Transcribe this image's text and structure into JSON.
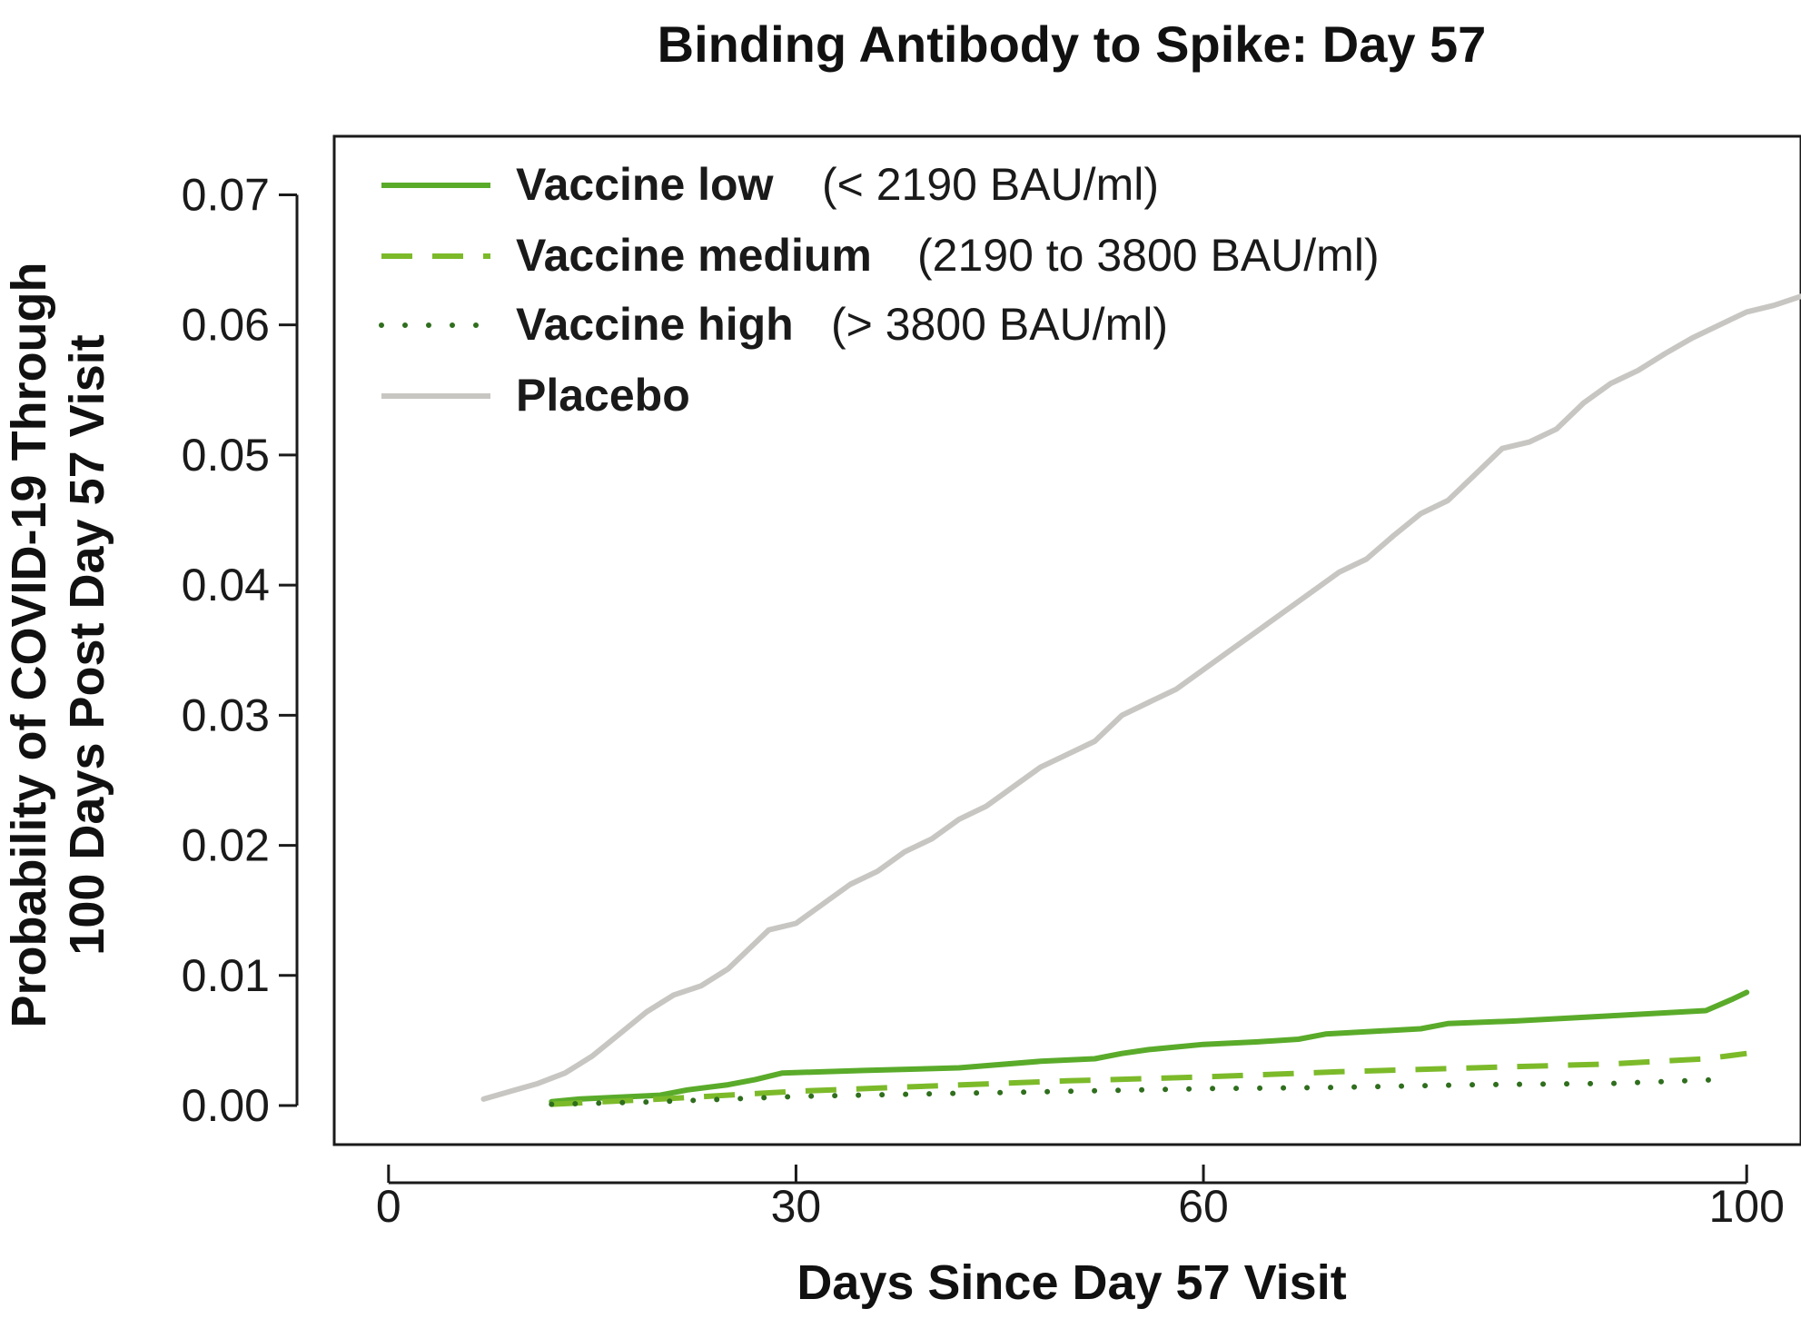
{
  "chart_data": {
    "type": "line",
    "title": "Binding Antibody to Spike: Day 57",
    "xlabel": "Days Since Day 57 Visit",
    "ylabel_line1": "Probability of COVID-19 Through",
    "ylabel_line2": "100 Days Post Day 57 Visit",
    "xlim": [
      -4,
      104
    ],
    "ylim": [
      -0.003,
      0.0745
    ],
    "x_ticks": [
      0,
      30,
      60,
      100
    ],
    "x_tick_labels": [
      "0",
      "30",
      "60",
      "100"
    ],
    "y_ticks": [
      0.0,
      0.01,
      0.02,
      0.03,
      0.04,
      0.05,
      0.06,
      0.07
    ],
    "y_tick_labels": [
      "0.00",
      "0.01",
      "0.02",
      "0.03",
      "0.04",
      "0.05",
      "0.06",
      "0.07"
    ],
    "grid": false,
    "legend_position": "top-left",
    "series": [
      {
        "name": "Vaccine low",
        "range_label": "(< 2190 BAU/ml)",
        "color": "#5aab2a",
        "style": "solid",
        "x": [
          12,
          14,
          20,
          22,
          25,
          27,
          29,
          35,
          42,
          48,
          52,
          54,
          56,
          60,
          64,
          67,
          69,
          76,
          78,
          83,
          90,
          97,
          99,
          100
        ],
        "y": [
          0.0003,
          0.0005,
          0.0008,
          0.0012,
          0.0016,
          0.002,
          0.0025,
          0.0027,
          0.0029,
          0.0034,
          0.0036,
          0.004,
          0.0043,
          0.0047,
          0.0049,
          0.0051,
          0.0055,
          0.0059,
          0.0063,
          0.0065,
          0.0069,
          0.0073,
          0.0082,
          0.0087
        ]
      },
      {
        "name": "Vaccine medium",
        "range_label": "(2190 to 3800 BAU/ml)",
        "color": "#7cba2a",
        "style": "dashed",
        "x": [
          12,
          20,
          30,
          40,
          50,
          60,
          70,
          80,
          90,
          97,
          100
        ],
        "y": [
          0.0001,
          0.0005,
          0.0011,
          0.0015,
          0.0019,
          0.0022,
          0.0026,
          0.0029,
          0.0032,
          0.0036,
          0.004
        ]
      },
      {
        "name": "Vaccine high",
        "range_label": "(> 3800 BAU/ml)",
        "color": "#2f6e1d",
        "style": "dotted",
        "x": [
          12,
          20,
          30,
          40,
          50,
          60,
          70,
          80,
          90,
          98
        ],
        "y": [
          0.0001,
          0.0003,
          0.0007,
          0.0009,
          0.0011,
          0.0013,
          0.0014,
          0.0016,
          0.0017,
          0.002
        ]
      },
      {
        "name": "Placebo",
        "range_label": "",
        "color": "#c8c6c2",
        "style": "solid",
        "x": [
          7,
          9,
          11,
          13,
          15,
          17,
          19,
          21,
          23,
          25,
          27,
          28,
          30,
          32,
          34,
          36,
          38,
          40,
          42,
          44,
          46,
          48,
          50,
          52,
          54,
          56,
          58,
          60,
          62,
          64,
          66,
          68,
          70,
          72,
          74,
          76,
          78,
          80,
          82,
          84,
          86,
          88,
          90,
          92,
          94,
          96,
          98,
          100,
          102,
          104
        ],
        "y": [
          0.0005,
          0.0011,
          0.0017,
          0.0025,
          0.0038,
          0.0055,
          0.0072,
          0.0085,
          0.0092,
          0.0105,
          0.0125,
          0.0135,
          0.014,
          0.0155,
          0.017,
          0.018,
          0.0195,
          0.0205,
          0.022,
          0.023,
          0.0245,
          0.026,
          0.027,
          0.028,
          0.03,
          0.031,
          0.032,
          0.0335,
          0.035,
          0.0365,
          0.038,
          0.0395,
          0.041,
          0.042,
          0.0438,
          0.0455,
          0.0465,
          0.0485,
          0.0505,
          0.051,
          0.052,
          0.054,
          0.0555,
          0.0565,
          0.0578,
          0.059,
          0.06,
          0.061,
          0.0615,
          0.0622
        ]
      }
    ]
  }
}
